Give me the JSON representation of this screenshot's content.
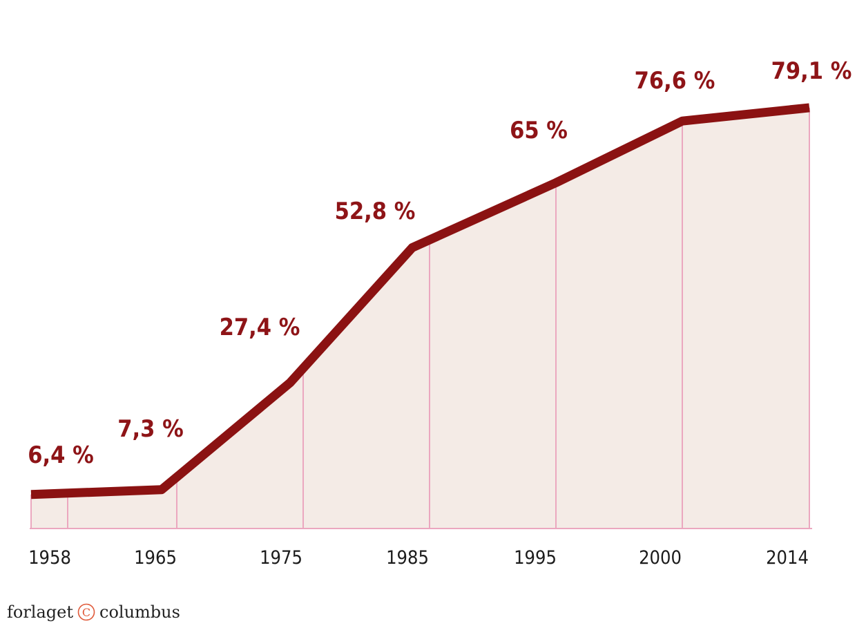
{
  "chart_data": {
    "type": "area",
    "title": "",
    "xlabel": "",
    "ylabel": "",
    "ylim": [
      0,
      80
    ],
    "grid": false,
    "series": [
      {
        "name": "",
        "x": [
          1958,
          1965,
          1975,
          1985,
          1995,
          2000,
          2014
        ],
        "values": [
          6.4,
          7.3,
          27.4,
          52.8,
          65,
          76.6,
          79.1
        ],
        "labels": [
          "6,4 %",
          "7,3 %",
          "27,4 %",
          "52,8 %",
          "65 %",
          "76,6 %",
          "79,1 %"
        ]
      }
    ],
    "categories": [
      "1958",
      "1965",
      "1975",
      "1985",
      "1995",
      "2000",
      "2014"
    ]
  },
  "colors": {
    "line": "#8b1212",
    "fill": "#f4ebe6",
    "gridline": "#eba7bf",
    "label": "#8e1417",
    "credit_mark": "#e05a3a"
  },
  "credit": {
    "left": "forlaget",
    "right": "columbus",
    "logo_text": "C"
  }
}
